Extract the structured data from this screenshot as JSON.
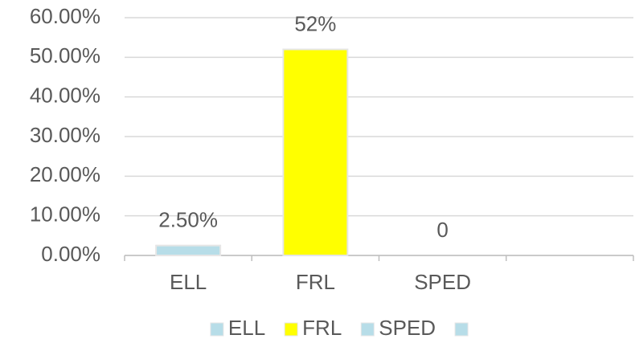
{
  "chart_data": {
    "type": "bar",
    "categories": [
      "ELL",
      "FRL",
      "SPED",
      null
    ],
    "values": [
      2.5,
      52,
      0,
      null
    ],
    "value_labels": [
      "2.50%",
      "52%",
      "0",
      null
    ],
    "colors": [
      "#b7dde8",
      "#ffff00",
      "#b7dde8",
      "#b7dde8"
    ],
    "ylim": [
      0,
      60
    ],
    "yticks": [
      {
        "value": 0,
        "label": "0.00%"
      },
      {
        "value": 10,
        "label": "10.00%"
      },
      {
        "value": 20,
        "label": "20.00%"
      },
      {
        "value": 30,
        "label": "30.00%"
      },
      {
        "value": 40,
        "label": "40.00%"
      },
      {
        "value": 50,
        "label": "50.00%"
      },
      {
        "value": 60,
        "label": "60.00%"
      }
    ],
    "grid": true,
    "legend": "bottom"
  }
}
